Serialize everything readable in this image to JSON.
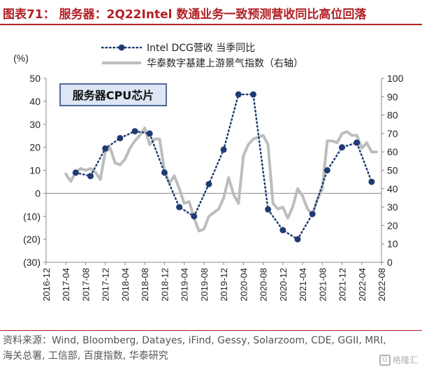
{
  "header": {
    "title": "图表71： 服务器：2Q22Intel 数通业务一致预测营收同比高位回落"
  },
  "chart_data": {
    "type": "line",
    "title": "图表71： 服务器：2Q22Intel 数通业务一致预测营收同比高位回落",
    "annotation": "服务器CPU芯片",
    "left_axis": {
      "label": "(%)",
      "min": -30,
      "max": 50,
      "step": 10,
      "ticks": [
        "(30)",
        "(20)",
        "(10)",
        "0",
        "10",
        "20",
        "30",
        "40",
        "50"
      ]
    },
    "right_axis": {
      "label": "",
      "min": 0,
      "max": 100,
      "step": 10,
      "ticks": [
        "0",
        "10",
        "20",
        "30",
        "40",
        "50",
        "60",
        "70",
        "80",
        "90",
        "100"
      ]
    },
    "x_axis": {
      "start": "2016-12",
      "end": "2022-08",
      "tick_labels": [
        "2016-12",
        "2017-04",
        "2017-08",
        "2017-12",
        "2018-04",
        "2018-08",
        "2018-12",
        "2019-04",
        "2019-08",
        "2019-12",
        "2020-04",
        "2020-08",
        "2020-12",
        "2021-04",
        "2021-08",
        "2021-12",
        "2022-04",
        "2022-08"
      ]
    },
    "legend_position": "top-center",
    "series": [
      {
        "name": "Intel DCG营收 当季同比",
        "axis": "left",
        "style": "dotted-with-markers",
        "color": "#1f3b73",
        "points": [
          [
            "2017-06",
            9
          ],
          [
            "2017-09",
            7.5
          ],
          [
            "2017-12",
            19.5
          ],
          [
            "2018-03",
            24
          ],
          [
            "2018-06",
            27
          ],
          [
            "2018-09",
            26
          ],
          [
            "2018-12",
            9
          ],
          [
            "2019-03",
            -6
          ],
          [
            "2019-06",
            -10
          ],
          [
            "2019-09",
            4
          ],
          [
            "2019-12",
            19
          ],
          [
            "2020-03",
            43
          ],
          [
            "2020-06",
            43
          ],
          [
            "2020-09",
            -7
          ],
          [
            "2020-12",
            -16
          ],
          [
            "2021-03",
            -20
          ],
          [
            "2021-06",
            -9
          ],
          [
            "2021-09",
            10
          ],
          [
            "2021-12",
            20
          ],
          [
            "2022-03",
            22
          ],
          [
            "2022-06",
            5
          ]
        ]
      },
      {
        "name": "华泰数字基建上游景气指数（右轴）",
        "axis": "right",
        "style": "solid",
        "color": "#bdbdbd",
        "points": [
          [
            "2017-04",
            48
          ],
          [
            "2017-05",
            44
          ],
          [
            "2017-06",
            49
          ],
          [
            "2017-07",
            51
          ],
          [
            "2017-08",
            50
          ],
          [
            "2017-09",
            51
          ],
          [
            "2017-10",
            49
          ],
          [
            "2017-11",
            45
          ],
          [
            "2017-12",
            60
          ],
          [
            "2018-01",
            62
          ],
          [
            "2018-02",
            54
          ],
          [
            "2018-03",
            53
          ],
          [
            "2018-04",
            56
          ],
          [
            "2018-05",
            62
          ],
          [
            "2018-06",
            66
          ],
          [
            "2018-07",
            69
          ],
          [
            "2018-08",
            73
          ],
          [
            "2018-09",
            64
          ],
          [
            "2018-10",
            67
          ],
          [
            "2018-11",
            67
          ],
          [
            "2018-12",
            50
          ],
          [
            "2019-01",
            43
          ],
          [
            "2019-02",
            47
          ],
          [
            "2019-03",
            40
          ],
          [
            "2019-04",
            32
          ],
          [
            "2019-05",
            33
          ],
          [
            "2019-06",
            24
          ],
          [
            "2019-07",
            17
          ],
          [
            "2019-08",
            18
          ],
          [
            "2019-09",
            25
          ],
          [
            "2019-10",
            27
          ],
          [
            "2019-11",
            29
          ],
          [
            "2019-12",
            35
          ],
          [
            "2020-01",
            46
          ],
          [
            "2020-02",
            37
          ],
          [
            "2020-03",
            32
          ],
          [
            "2020-04",
            58
          ],
          [
            "2020-05",
            64
          ],
          [
            "2020-06",
            67
          ],
          [
            "2020-07",
            68
          ],
          [
            "2020-08",
            69
          ],
          [
            "2020-09",
            64
          ],
          [
            "2020-10",
            32
          ],
          [
            "2020-11",
            29
          ],
          [
            "2020-12",
            30
          ],
          [
            "2021-01",
            24
          ],
          [
            "2021-02",
            30
          ],
          [
            "2021-03",
            40
          ],
          [
            "2021-04",
            36
          ],
          [
            "2021-05",
            29
          ],
          [
            "2021-06",
            26
          ],
          [
            "2021-07",
            34
          ],
          [
            "2021-08",
            40
          ],
          [
            "2021-09",
            66
          ],
          [
            "2021-10",
            66
          ],
          [
            "2021-11",
            65
          ],
          [
            "2021-12",
            70
          ],
          [
            "2022-01",
            71
          ],
          [
            "2022-02",
            69
          ],
          [
            "2022-03",
            69
          ],
          [
            "2022-04",
            62
          ],
          [
            "2022-05",
            65
          ],
          [
            "2022-06",
            60
          ],
          [
            "2022-07",
            60
          ]
        ]
      }
    ]
  },
  "source": {
    "text": "资料来源：Wind, Bloomberg, Datayes, iFind, Gessy, Solarzoom, CDE, GGII, MRI, 海关总署, 工信部, 百度指数, 华泰研究"
  },
  "watermark": {
    "logo": "G",
    "text": "格隆汇"
  },
  "colors": {
    "title": "#b11f24",
    "series_dcg": "#1f3b73",
    "series_index": "#bdbdbd"
  }
}
